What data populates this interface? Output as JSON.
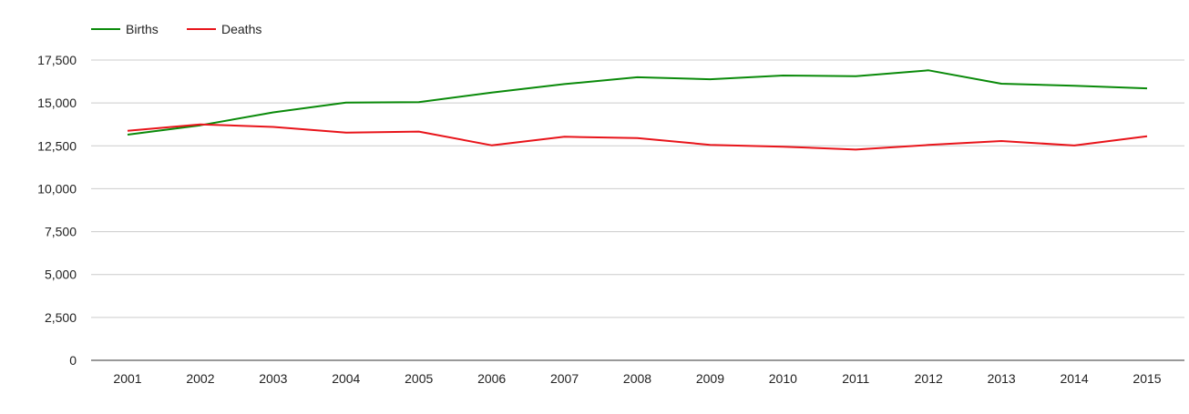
{
  "chart_data": {
    "type": "line",
    "title": "",
    "xlabel": "",
    "ylabel": "",
    "categories": [
      "2001",
      "2002",
      "2003",
      "2004",
      "2005",
      "2006",
      "2007",
      "2008",
      "2009",
      "2010",
      "2011",
      "2012",
      "2013",
      "2014",
      "2015"
    ],
    "yticks": [
      0,
      2500,
      5000,
      7500,
      10000,
      12500,
      15000,
      17500
    ],
    "ytick_labels": [
      "0",
      "2,500",
      "5,000",
      "7,500",
      "10,000",
      "12,500",
      "15,000",
      "17,500"
    ],
    "ylim": [
      0,
      18500
    ],
    "grid": true,
    "legend_position": "top-left",
    "series": [
      {
        "name": "Births",
        "color": "#0a8a0a",
        "values": [
          13150,
          13700,
          14450,
          15020,
          15050,
          15600,
          16100,
          16500,
          16380,
          16600,
          16560,
          16900,
          16120,
          16000,
          15850
        ]
      },
      {
        "name": "Deaths",
        "color": "#e8141a",
        "values": [
          13380,
          13750,
          13600,
          13270,
          13330,
          12530,
          13030,
          12950,
          12560,
          12450,
          12280,
          12550,
          12780,
          12520,
          13060
        ]
      }
    ]
  }
}
